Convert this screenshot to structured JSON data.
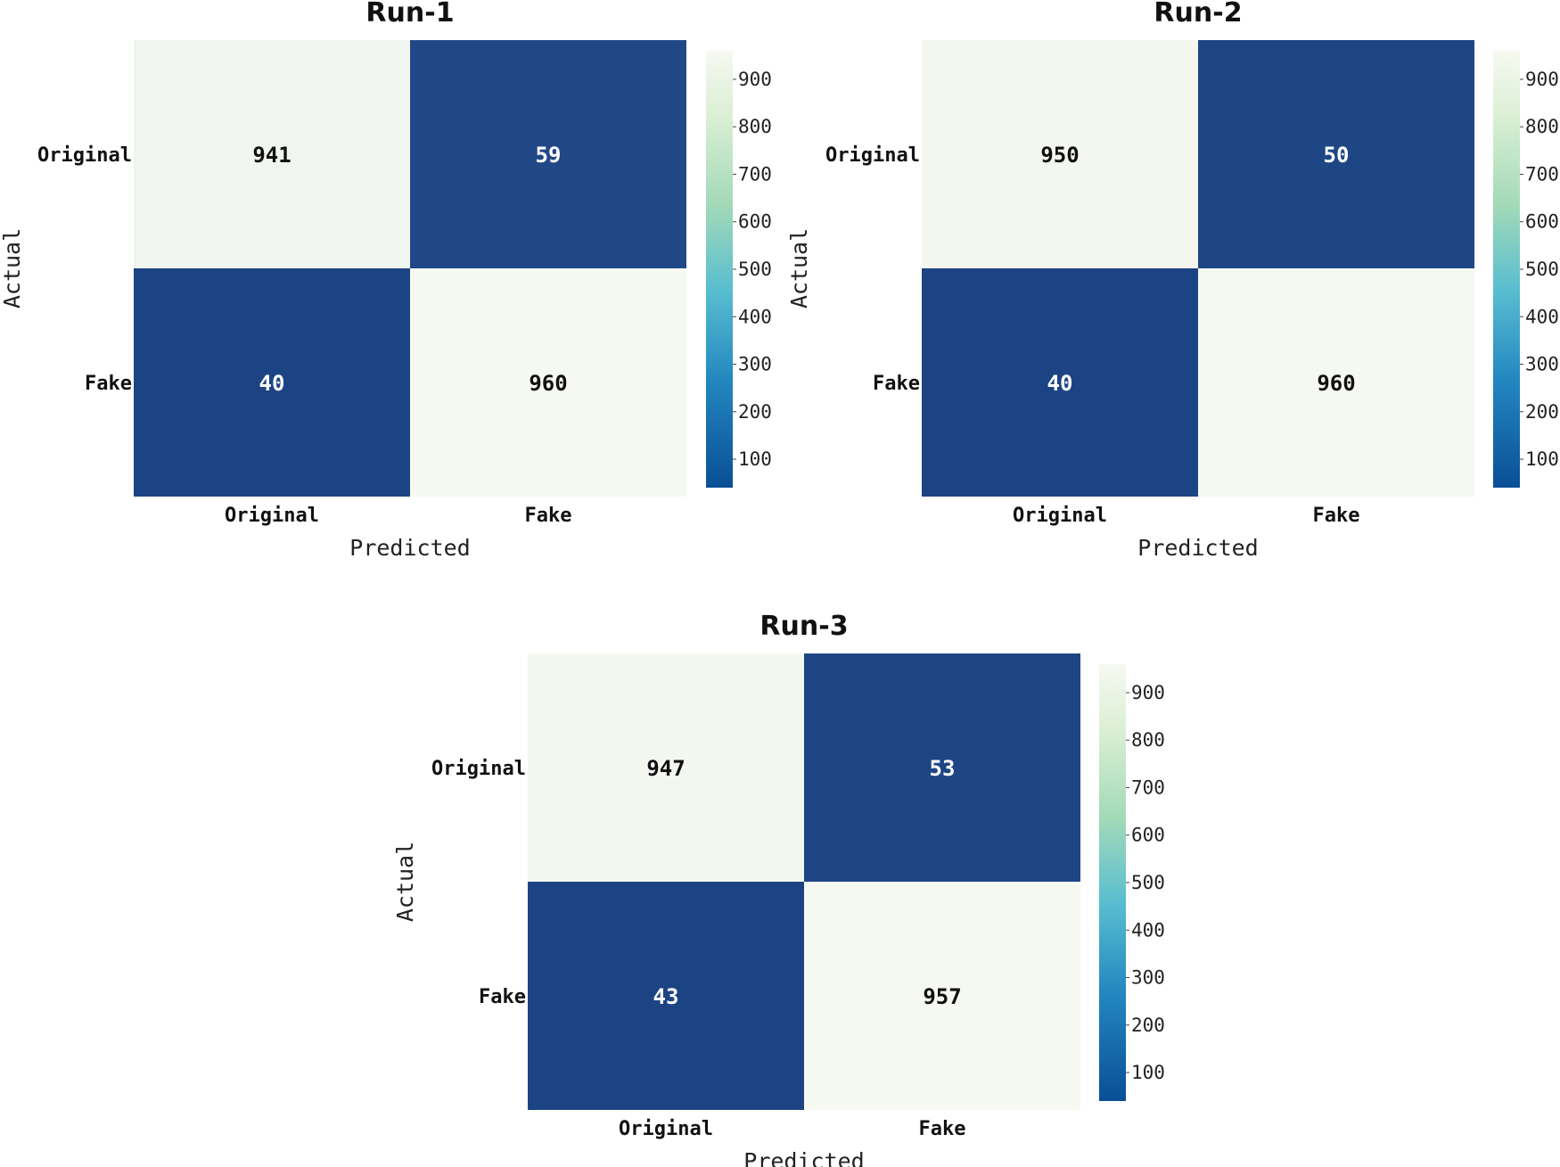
{
  "chart_data": [
    {
      "type": "heatmap",
      "title": "Run-1",
      "xlabel": "Predicted",
      "ylabel": "Actual",
      "x_categories": [
        "Original",
        "Fake"
      ],
      "y_categories": [
        "Original",
        "Fake"
      ],
      "values": [
        [
          941,
          59
        ],
        [
          40,
          960
        ]
      ],
      "colorbar": {
        "ticks": [
          "100",
          "200",
          "300",
          "400",
          "500",
          "600",
          "700",
          "800",
          "900"
        ],
        "range": [
          40,
          960
        ]
      }
    },
    {
      "type": "heatmap",
      "title": "Run-2",
      "xlabel": "Predicted",
      "ylabel": "Actual",
      "x_categories": [
        "Original",
        "Fake"
      ],
      "y_categories": [
        "Original",
        "Fake"
      ],
      "values": [
        [
          950,
          50
        ],
        [
          40,
          960
        ]
      ],
      "colorbar": {
        "ticks": [
          "100",
          "200",
          "300",
          "400",
          "500",
          "600",
          "700",
          "800",
          "900"
        ],
        "range": [
          40,
          960
        ]
      }
    },
    {
      "type": "heatmap",
      "title": "Run-3",
      "xlabel": "Predicted",
      "ylabel": "Actual",
      "x_categories": [
        "Original",
        "Fake"
      ],
      "y_categories": [
        "Original",
        "Fake"
      ],
      "values": [
        [
          947,
          53
        ],
        [
          43,
          957
        ]
      ],
      "colorbar": {
        "ticks": [
          "100",
          "200",
          "300",
          "400",
          "500",
          "600",
          "700",
          "800",
          "900"
        ],
        "range": [
          43,
          957
        ]
      }
    }
  ],
  "colors": {
    "colormap_low": "#1c4484",
    "colormap_mid": "#58bdd0",
    "colormap_high": "#f6f9f1",
    "text_on_dark": "#ffffff",
    "text_on_light": "#111111"
  }
}
